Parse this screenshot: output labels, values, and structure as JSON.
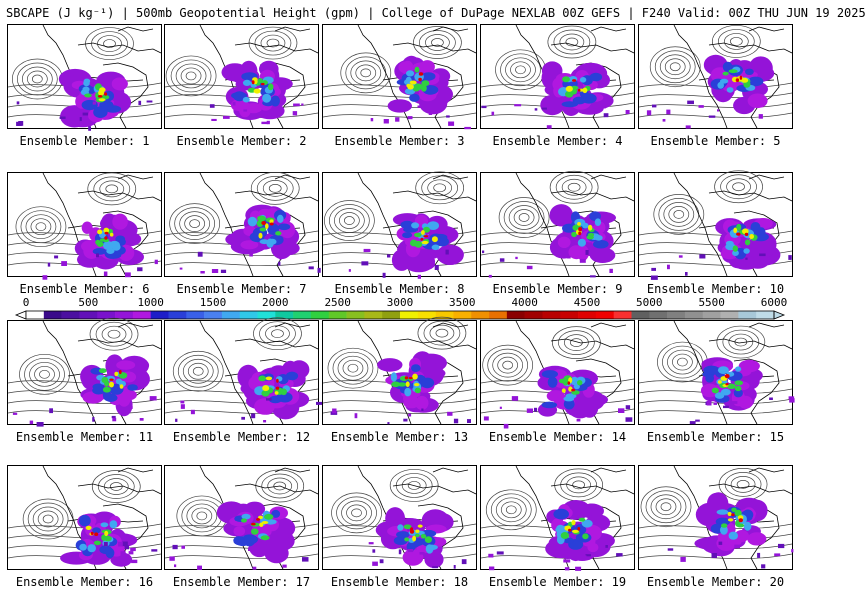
{
  "title": "SBCAPE (J kg⁻¹) | 500mb Geopotential Height (gpm) | College of DuPage NEXLAB 00Z GEFS | F240 Valid: 00Z THU JUN 19 2025",
  "caption_prefix": "Ensemble Member:",
  "members": [
    {
      "id": "1"
    },
    {
      "id": "2"
    },
    {
      "id": "3"
    },
    {
      "id": "4"
    },
    {
      "id": "5"
    },
    {
      "id": "6"
    },
    {
      "id": "7"
    },
    {
      "id": "8"
    },
    {
      "id": "9"
    },
    {
      "id": "10"
    },
    {
      "id": "11"
    },
    {
      "id": "12"
    },
    {
      "id": "13"
    },
    {
      "id": "14"
    },
    {
      "id": "15"
    },
    {
      "id": "16"
    },
    {
      "id": "17"
    },
    {
      "id": "18"
    },
    {
      "id": "19"
    },
    {
      "id": "20"
    }
  ],
  "colorbar": {
    "labels": [
      "0",
      "500",
      "1000",
      "1500",
      "2000",
      "2500",
      "3000",
      "3500",
      "4000",
      "4500",
      "5000",
      "5500",
      "6000"
    ],
    "min": 0,
    "max": 6000,
    "colors": [
      "#ffffff",
      "#3a0a8a",
      "#4b0fa0",
      "#6210b8",
      "#7a12cc",
      "#9414d8",
      "#b018e0",
      "#1e1ec8",
      "#2a3fd8",
      "#3a60e8",
      "#4a80f0",
      "#40a8f0",
      "#30c8e8",
      "#20e0d8",
      "#10c8a0",
      "#20d070",
      "#30d040",
      "#60c828",
      "#88c020",
      "#a8b818",
      "#90a010",
      "#f0f000",
      "#f8e000",
      "#f8c800",
      "#f8b000",
      "#f09000",
      "#e87000",
      "#8a0000",
      "#a00000",
      "#b80000",
      "#c80000",
      "#e00000",
      "#f00000",
      "#f83030",
      "#606060",
      "#707070",
      "#808080",
      "#909090",
      "#a0a0a0",
      "#b0b0b0",
      "#a8c8d8",
      "#c0dce8"
    ]
  }
}
